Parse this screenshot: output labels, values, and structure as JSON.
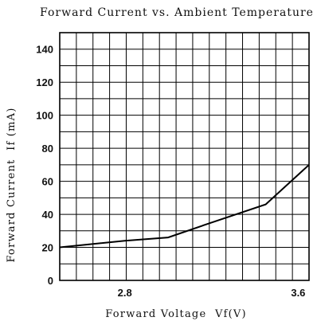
{
  "chart_data": {
    "type": "line",
    "title": "Forward Current vs. Ambient Temperature",
    "xlabel": "Forward Voltage  Vf(V)",
    "ylabel": "Forward Current  If (mA)",
    "xlim": [
      2.5,
      3.65
    ],
    "ylim": [
      0,
      150
    ],
    "x_ticks": [
      2.8,
      3.6
    ],
    "y_ticks": [
      0,
      20,
      40,
      60,
      80,
      100,
      120,
      140
    ],
    "grid": true,
    "series": [
      {
        "x": [
          2.5,
          2.8,
          3.0,
          3.2,
          3.45,
          3.65
        ],
        "y": [
          20,
          24,
          26,
          35,
          46,
          70
        ]
      }
    ]
  }
}
